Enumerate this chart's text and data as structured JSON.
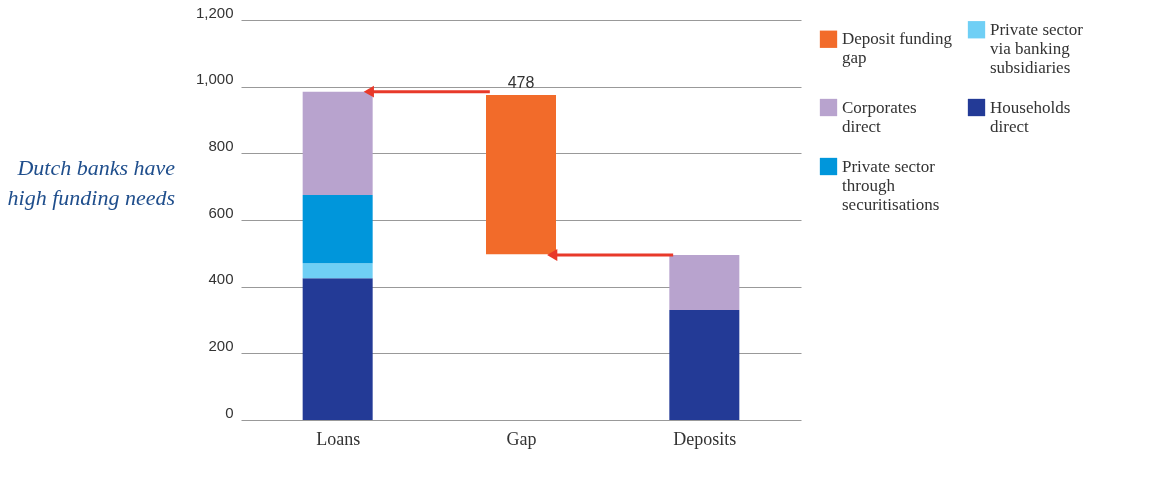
{
  "chart_data": {
    "type": "bar",
    "title": "Dutch banks have high funding needs",
    "stacked": true,
    "categories": [
      "Loans",
      "Gap",
      "Deposits"
    ],
    "series": [
      {
        "name": "Households direct",
        "color": "#233a96",
        "values": [
          425,
          null,
          330
        ]
      },
      {
        "name": "Private sector via banking subsidiaries",
        "color": "#6fcff5",
        "values": [
          45,
          null,
          null
        ]
      },
      {
        "name": "Private sector through securitisations",
        "color": "#0096db",
        "values": [
          205,
          null,
          null
        ]
      },
      {
        "name": "Corporates direct",
        "color": "#b8a3ce",
        "values": [
          310,
          null,
          165
        ]
      },
      {
        "name": "Deposit funding gap",
        "color": "#f26b2a",
        "values": [
          null,
          478,
          null
        ],
        "base": [
          null,
          497,
          null
        ],
        "value_labels": [
          null,
          "478",
          null
        ]
      }
    ],
    "ylim": [
      0,
      1200
    ],
    "yticks": [
      0,
      200,
      400,
      600,
      800,
      {
        "value": 1000,
        "label": "1,000"
      },
      {
        "value": 1200,
        "label": "1,200"
      }
    ],
    "grid": "y",
    "legend": "right"
  }
}
